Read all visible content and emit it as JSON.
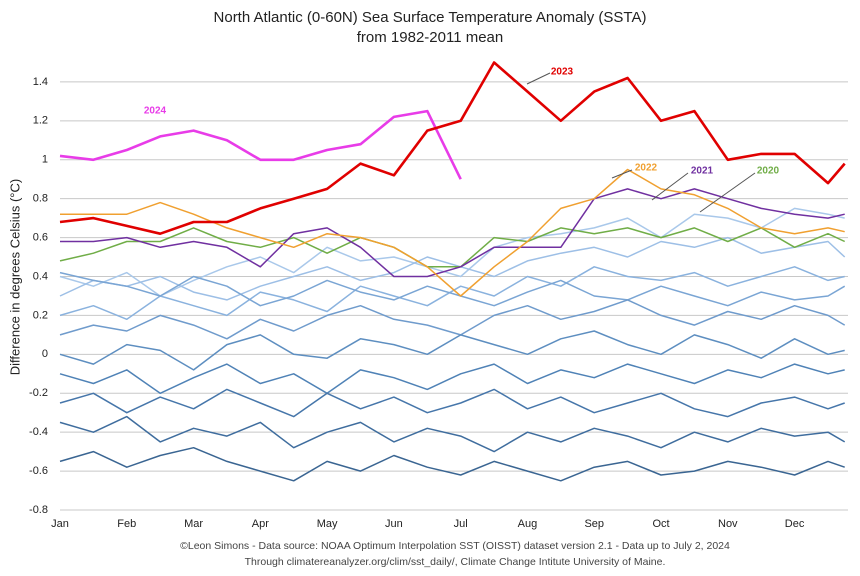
{
  "chart_data": {
    "type": "line",
    "title": "North Atlantic (0-60N) Sea Surface Temperature Anomaly (SSTA)",
    "subtitle": "from 1982-2011 mean",
    "y_label": "Difference in degrees Celsius (°C)",
    "footer": [
      "©Leon Simons - Data source: NOAA Optimum Interpolation SST (OISST) dataset version 2.1 - Data up to July 2, 2024",
      "Through climatereanalyzer.org/clim/sst_daily/, Climate Change Intitute University of Maine."
    ],
    "x": [
      1,
      1.5,
      2,
      2.5,
      3,
      3.5,
      4,
      4.5,
      5,
      5.5,
      6,
      6.5,
      7,
      7.5,
      8,
      8.5,
      9,
      9.5,
      10,
      10.5,
      11,
      11.5,
      12,
      12.5,
      12.75
    ],
    "xlim": [
      1,
      12.8
    ],
    "xticks": [
      {
        "value": 1,
        "label": "Jan"
      },
      {
        "value": 2,
        "label": "Feb"
      },
      {
        "value": 3,
        "label": "Mar"
      },
      {
        "value": 4,
        "label": "Apr"
      },
      {
        "value": 5,
        "label": "May"
      },
      {
        "value": 6,
        "label": "Jun"
      },
      {
        "value": 7,
        "label": "Jul"
      },
      {
        "value": 8,
        "label": "Aug"
      },
      {
        "value": 9,
        "label": "Sep"
      },
      {
        "value": 10,
        "label": "Oct"
      },
      {
        "value": 11,
        "label": "Nov"
      },
      {
        "value": 12,
        "label": "Dec"
      }
    ],
    "ylim": [
      -0.8,
      1.6
    ],
    "yticks": [
      -0.8,
      -0.6,
      -0.4,
      -0.2,
      0,
      0.2,
      0.4,
      0.6,
      0.8,
      1,
      1.2,
      1.4
    ],
    "grid": true,
    "series": [
      {
        "color": "#a9c8ea",
        "values": [
          0.4,
          0.35,
          0.42,
          0.3,
          0.38,
          0.45,
          0.5,
          0.42,
          0.55,
          0.48,
          0.5,
          0.45,
          0.4,
          0.55,
          0.6,
          0.62,
          0.65,
          0.7,
          0.6,
          0.72,
          0.7,
          0.65,
          0.75,
          0.72,
          0.7
        ]
      },
      {
        "color": "#9dbfe6",
        "values": [
          0.3,
          0.38,
          0.35,
          0.4,
          0.32,
          0.28,
          0.35,
          0.4,
          0.45,
          0.38,
          0.42,
          0.5,
          0.45,
          0.4,
          0.48,
          0.52,
          0.55,
          0.5,
          0.58,
          0.55,
          0.6,
          0.52,
          0.55,
          0.58,
          0.5
        ]
      },
      {
        "color": "#8ab2de",
        "values": [
          0.2,
          0.25,
          0.18,
          0.3,
          0.25,
          0.2,
          0.32,
          0.28,
          0.22,
          0.35,
          0.3,
          0.25,
          0.35,
          0.3,
          0.4,
          0.35,
          0.45,
          0.4,
          0.38,
          0.42,
          0.35,
          0.4,
          0.45,
          0.38,
          0.4
        ]
      },
      {
        "color": "#7aa5d4",
        "values": [
          0.42,
          0.38,
          0.35,
          0.3,
          0.4,
          0.35,
          0.25,
          0.3,
          0.38,
          0.32,
          0.28,
          0.35,
          0.3,
          0.25,
          0.32,
          0.38,
          0.3,
          0.28,
          0.35,
          0.3,
          0.25,
          0.32,
          0.28,
          0.3,
          0.35
        ]
      },
      {
        "color": "#6f9bcc",
        "values": [
          0.1,
          0.15,
          0.12,
          0.2,
          0.15,
          0.08,
          0.18,
          0.12,
          0.2,
          0.25,
          0.18,
          0.15,
          0.1,
          0.2,
          0.25,
          0.18,
          0.22,
          0.28,
          0.2,
          0.15,
          0.22,
          0.18,
          0.25,
          0.2,
          0.15
        ]
      },
      {
        "color": "#5d8ec0",
        "values": [
          0.0,
          -0.05,
          0.05,
          0.02,
          -0.08,
          0.05,
          0.1,
          0.0,
          -0.02,
          0.08,
          0.05,
          0.0,
          0.1,
          0.05,
          0.0,
          0.08,
          0.12,
          0.05,
          0.0,
          0.1,
          0.05,
          -0.02,
          0.08,
          0.0,
          0.02
        ]
      },
      {
        "color": "#4f82b6",
        "values": [
          -0.1,
          -0.15,
          -0.08,
          -0.2,
          -0.12,
          -0.05,
          -0.15,
          -0.1,
          -0.2,
          -0.08,
          -0.12,
          -0.18,
          -0.1,
          -0.05,
          -0.15,
          -0.08,
          -0.12,
          -0.05,
          -0.1,
          -0.15,
          -0.08,
          -0.12,
          -0.05,
          -0.1,
          -0.08
        ]
      },
      {
        "color": "#4676aa",
        "values": [
          -0.25,
          -0.2,
          -0.3,
          -0.22,
          -0.28,
          -0.18,
          -0.25,
          -0.32,
          -0.2,
          -0.28,
          -0.22,
          -0.3,
          -0.25,
          -0.18,
          -0.28,
          -0.22,
          -0.3,
          -0.25,
          -0.2,
          -0.28,
          -0.32,
          -0.25,
          -0.22,
          -0.28,
          -0.25
        ]
      },
      {
        "color": "#3f6d9e",
        "values": [
          -0.35,
          -0.4,
          -0.32,
          -0.45,
          -0.38,
          -0.42,
          -0.35,
          -0.48,
          -0.4,
          -0.35,
          -0.45,
          -0.38,
          -0.42,
          -0.5,
          -0.4,
          -0.45,
          -0.38,
          -0.42,
          -0.48,
          -0.4,
          -0.45,
          -0.38,
          -0.42,
          -0.4,
          -0.45
        ]
      },
      {
        "color": "#3a6592",
        "values": [
          -0.55,
          -0.5,
          -0.58,
          -0.52,
          -0.48,
          -0.55,
          -0.6,
          -0.65,
          -0.55,
          -0.6,
          -0.52,
          -0.58,
          -0.62,
          -0.55,
          -0.6,
          -0.65,
          -0.58,
          -0.55,
          -0.62,
          -0.6,
          -0.55,
          -0.58,
          -0.62,
          -0.55,
          -0.58
        ]
      },
      {
        "name": "2020",
        "color": "#70ad47",
        "values": [
          0.48,
          0.52,
          0.58,
          0.58,
          0.65,
          0.58,
          0.55,
          0.6,
          0.52,
          0.6,
          0.55,
          0.45,
          0.45,
          0.6,
          0.58,
          0.65,
          0.62,
          0.65,
          0.6,
          0.65,
          0.58,
          0.65,
          0.55,
          0.62,
          0.58
        ]
      },
      {
        "name": "2021",
        "color": "#7030a0",
        "values": [
          0.58,
          0.58,
          0.6,
          0.55,
          0.58,
          0.55,
          0.45,
          0.62,
          0.65,
          0.55,
          0.4,
          0.4,
          0.45,
          0.55,
          0.55,
          0.55,
          0.8,
          0.85,
          0.8,
          0.85,
          0.8,
          0.75,
          0.72,
          0.7,
          0.72
        ]
      },
      {
        "name": "2022",
        "color": "#f0a030",
        "values": [
          0.72,
          0.72,
          0.72,
          0.78,
          0.72,
          0.65,
          0.6,
          0.55,
          0.62,
          0.6,
          0.55,
          0.45,
          0.3,
          0.45,
          0.58,
          0.75,
          0.8,
          0.95,
          0.85,
          0.82,
          0.75,
          0.65,
          0.62,
          0.65,
          0.63
        ]
      },
      {
        "name": "2024",
        "color": "#e83ce8",
        "values": [
          1.02,
          1.0,
          1.05,
          1.12,
          1.15,
          1.1,
          1.0,
          1.0,
          1.05,
          1.08,
          1.22,
          1.25,
          0.9,
          null,
          null,
          null,
          null,
          null,
          null,
          null,
          null,
          null,
          null,
          null,
          null
        ]
      },
      {
        "name": "2023",
        "color": "#e00000",
        "values": [
          0.68,
          0.7,
          0.66,
          0.62,
          0.68,
          0.68,
          0.75,
          0.8,
          0.85,
          0.98,
          0.92,
          1.15,
          1.2,
          1.5,
          1.35,
          1.2,
          1.35,
          1.42,
          1.2,
          1.25,
          1.0,
          1.03,
          1.03,
          0.88,
          0.98
        ]
      }
    ]
  }
}
